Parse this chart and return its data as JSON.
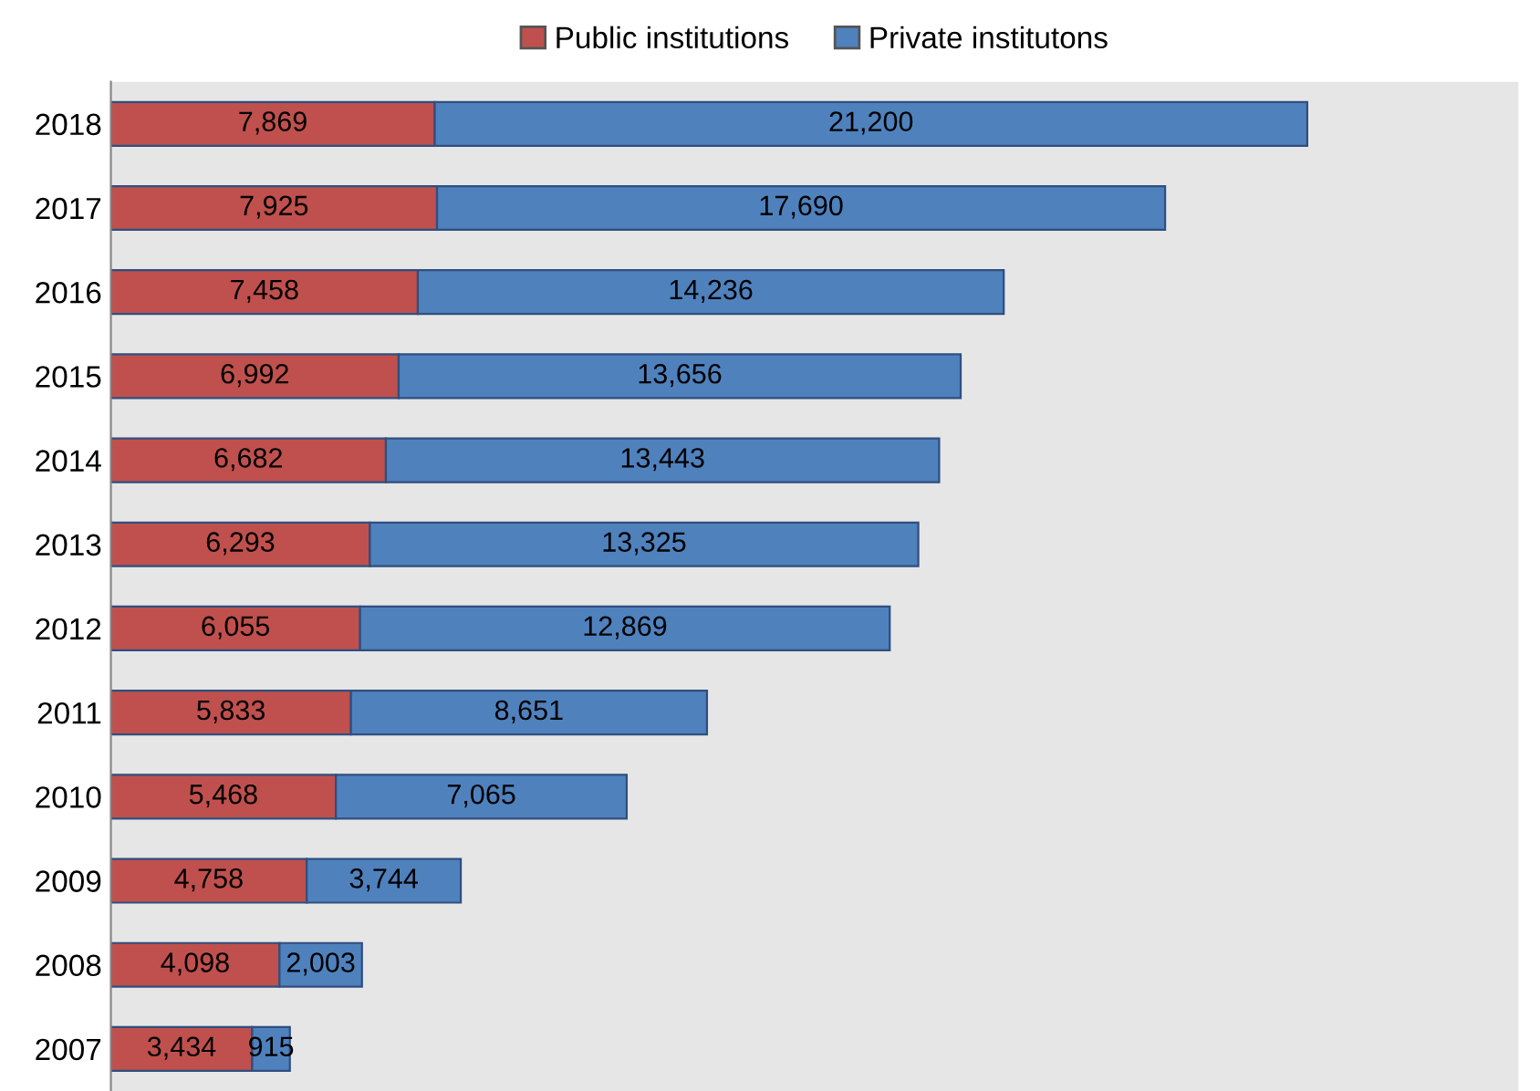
{
  "chart_data": {
    "type": "bar",
    "orientation": "horizontal",
    "stacked": true,
    "legend": "top",
    "grid": false,
    "categories": [
      "2018",
      "2017",
      "2016",
      "2015",
      "2014",
      "2013",
      "2012",
      "2011",
      "2010",
      "2009",
      "2008",
      "2007"
    ],
    "xlim": [
      0,
      34200
    ],
    "series": [
      {
        "name": "Public institutions",
        "color": "#c0504d",
        "values": [
          7869,
          7925,
          7458,
          6992,
          6682,
          6293,
          6055,
          5833,
          5468,
          4758,
          4098,
          3434
        ],
        "value_labels": [
          "7,869",
          "7,925",
          "7,458",
          "6,992",
          "6,682",
          "6,293",
          "6,055",
          "5,833",
          "5,468",
          "4,758",
          "4,098",
          "3,434"
        ]
      },
      {
        "name": "Private institutons",
        "color": "#4f81bd",
        "values": [
          21200,
          17690,
          14236,
          13656,
          13443,
          13325,
          12869,
          8651,
          7065,
          3744,
          2003,
          915
        ],
        "value_labels": [
          "21,200",
          "17,690",
          "14,236",
          "13,656",
          "13,443",
          "13,325",
          "12,869",
          "8,651",
          "7,065",
          "3,744",
          "2,003",
          "915"
        ]
      }
    ]
  }
}
